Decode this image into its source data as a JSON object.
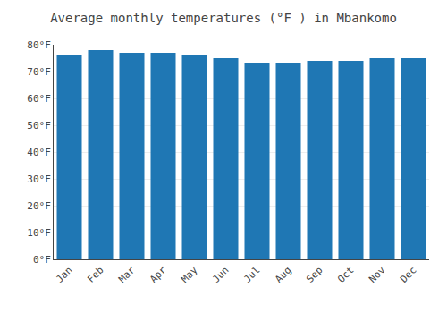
{
  "chart_data": {
    "type": "bar",
    "title": "Average monthly temperatures (°F ) in Mbankomo",
    "categories": [
      "Jan",
      "Feb",
      "Mar",
      "Apr",
      "May",
      "Jun",
      "Jul",
      "Aug",
      "Sep",
      "Oct",
      "Nov",
      "Dec"
    ],
    "values": [
      76,
      78,
      77,
      77,
      76,
      75,
      73,
      73,
      74,
      74,
      75,
      75
    ],
    "ylim": [
      0,
      80
    ],
    "yticks": [
      {
        "value": 0,
        "label": "0°F"
      },
      {
        "value": 10,
        "label": "10°F"
      },
      {
        "value": 20,
        "label": "20°F"
      },
      {
        "value": 30,
        "label": "30°F"
      },
      {
        "value": 40,
        "label": "40°F"
      },
      {
        "value": 50,
        "label": "50°F"
      },
      {
        "value": 60,
        "label": "60°F"
      },
      {
        "value": 70,
        "label": "70°F"
      },
      {
        "value": 80,
        "label": "80°F"
      }
    ],
    "grid": true
  }
}
